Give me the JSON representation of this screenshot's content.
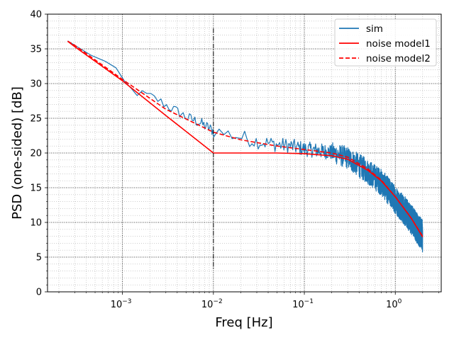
{
  "chart_data": {
    "type": "line",
    "title": "",
    "xlabel": "Freq [Hz]",
    "ylabel": "PSD (one-sided) [dB]",
    "xscale": "log",
    "xlim": [
      0.00015,
      3.2
    ],
    "ylim": [
      0,
      40
    ],
    "xticks": [
      {
        "value": 0.001,
        "base": "10",
        "exp": "−3"
      },
      {
        "value": 0.01,
        "base": "10",
        "exp": "−2"
      },
      {
        "value": 0.1,
        "base": "10",
        "exp": "−1"
      },
      {
        "value": 1,
        "base": "10",
        "exp": "0"
      }
    ],
    "yticks": [
      0,
      5,
      10,
      15,
      20,
      25,
      30,
      35,
      40
    ],
    "grid": {
      "major": true,
      "minor": true,
      "style": "dotted"
    },
    "vline": {
      "x": 0.01,
      "style": "dashed",
      "color": "#000000"
    },
    "legend": {
      "position": "top-right"
    },
    "series": [
      {
        "name": "sim",
        "color": "#1f77b4",
        "style": "solid",
        "noisy": true,
        "x": [
          0.00025,
          0.0004,
          0.0006,
          0.00075,
          0.001,
          0.0012,
          0.0015,
          0.002,
          0.0025,
          0.003,
          0.004,
          0.005,
          0.007,
          0.01,
          0.015,
          0.02,
          0.03,
          0.05,
          0.07,
          0.1,
          0.15,
          0.2,
          0.3,
          0.5,
          0.7,
          1.0,
          1.5,
          2.0
        ],
        "y": [
          36.1,
          34.5,
          33.3,
          32.6,
          30.5,
          29.2,
          28.6,
          28.2,
          27.6,
          26.9,
          26.0,
          25.2,
          24.4,
          23.2,
          22.7,
          22.3,
          21.7,
          21.2,
          21.0,
          20.6,
          20.3,
          20.1,
          19.3,
          17.3,
          15.8,
          13.3,
          10.5,
          8.0
        ]
      },
      {
        "name": "noise model1",
        "color": "#ff0000",
        "style": "solid",
        "x": [
          0.00025,
          0.0003,
          0.001,
          0.003,
          0.01,
          0.02,
          0.05,
          0.1,
          0.2,
          0.3,
          0.5,
          0.7,
          1.0,
          1.5,
          2.0
        ],
        "y": [
          36.1,
          35.3,
          30.4,
          25.4,
          20.0,
          20.0,
          20.0,
          19.9,
          19.6,
          19.1,
          17.5,
          16.0,
          13.7,
          10.6,
          7.9
        ]
      },
      {
        "name": "noise model2",
        "color": "#ff0000",
        "style": "dashed",
        "x": [
          0.00025,
          0.0003,
          0.001,
          0.003,
          0.01,
          0.02,
          0.05,
          0.1,
          0.2,
          0.3,
          0.5,
          0.7,
          1.0,
          1.5,
          2.0
        ],
        "y": [
          36.1,
          35.5,
          30.6,
          26.3,
          23.0,
          21.9,
          21.0,
          20.5,
          20.0,
          19.4,
          17.7,
          16.1,
          13.7,
          10.6,
          8.0
        ]
      }
    ]
  }
}
